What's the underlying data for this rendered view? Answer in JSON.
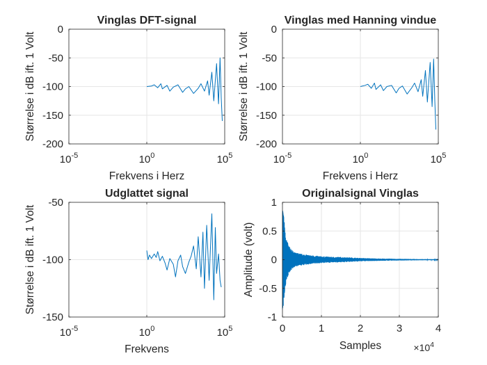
{
  "chart_data": [
    {
      "type": "line",
      "title": "Vinglas DFT-signal",
      "xlabel": "Frekvens i Herz",
      "ylabel": "Størrelse i dB ift. 1 Volt",
      "xscale": "log",
      "xlim": [
        1e-05,
        100000
      ],
      "ylim": [
        -200,
        0
      ],
      "grid": true,
      "xticks": [
        {
          "base": "10",
          "exp": "-5"
        },
        {
          "base": "10",
          "exp": "0"
        },
        {
          "base": "10",
          "exp": "5"
        }
      ],
      "yticks": [
        "0",
        "-50",
        "-100",
        "-150",
        "-200"
      ],
      "line_color": "#0072BD",
      "series": [
        {
          "x": [
            1,
            2,
            3,
            5,
            8,
            10,
            20,
            30,
            50,
            100,
            200,
            300,
            500,
            1000,
            2000,
            3000,
            5000,
            8000,
            10000,
            15000,
            20000,
            30000,
            40000,
            50000,
            60000,
            70000
          ],
          "y": [
            -100,
            -99,
            -97,
            -102,
            -95,
            -104,
            -98,
            -108,
            -101,
            -97,
            -110,
            -104,
            -100,
            -112,
            -103,
            -95,
            -108,
            -90,
            -115,
            -75,
            -125,
            -60,
            -130,
            -50,
            -120,
            -160
          ]
        }
      ]
    },
    {
      "type": "line",
      "title": "Vinglas med Hanning vindue",
      "xlabel": "Frekvens i Herz",
      "ylabel": "Størrelse i dB ift. 1 Volt",
      "xscale": "log",
      "xlim": [
        1e-05,
        100000
      ],
      "ylim": [
        -200,
        0
      ],
      "grid": true,
      "xticks": [
        {
          "base": "10",
          "exp": "-5"
        },
        {
          "base": "10",
          "exp": "0"
        },
        {
          "base": "10",
          "exp": "5"
        }
      ],
      "yticks": [
        "0",
        "-50",
        "-100",
        "-150",
        "-200"
      ],
      "line_color": "#0072BD",
      "series": [
        {
          "x": [
            1,
            2,
            3,
            5,
            8,
            10,
            20,
            30,
            50,
            100,
            200,
            300,
            500,
            1000,
            2000,
            3000,
            5000,
            8000,
            10000,
            15000,
            20000,
            30000,
            40000,
            50000,
            60000,
            70000
          ],
          "y": [
            -100,
            -98,
            -96,
            -103,
            -94,
            -105,
            -97,
            -107,
            -100,
            -98,
            -111,
            -103,
            -99,
            -113,
            -102,
            -94,
            -109,
            -88,
            -117,
            -72,
            -127,
            -58,
            -135,
            -52,
            -125,
            -175
          ]
        }
      ]
    },
    {
      "type": "line",
      "title": "Udglattet signal",
      "xlabel": "Frekvens",
      "ylabel": "Størrelse i dB ift. 1 Volt",
      "xscale": "log",
      "xlim": [
        1e-05,
        100000
      ],
      "ylim": [
        -150,
        -50
      ],
      "grid": true,
      "xticks": [
        {
          "base": "10",
          "exp": "-5"
        },
        {
          "base": "10",
          "exp": "0"
        },
        {
          "base": "10",
          "exp": "5"
        }
      ],
      "yticks": [
        "-50",
        "-100",
        "-150"
      ],
      "line_color": "#0072BD",
      "series": [
        {
          "x": [
            1,
            1.2,
            1.5,
            2,
            3,
            4,
            5,
            7,
            10,
            15,
            20,
            30,
            50,
            70,
            100,
            150,
            200,
            300,
            500,
            700,
            1000,
            1500,
            2000,
            3000,
            4000,
            5000,
            7000,
            10000,
            15000,
            20000,
            25000,
            30000,
            40000,
            50000,
            60000
          ],
          "y": [
            -92,
            -100,
            -96,
            -99,
            -95,
            -98,
            -93,
            -101,
            -97,
            -103,
            -109,
            -99,
            -104,
            -115,
            -101,
            -96,
            -106,
            -112,
            -102,
            -97,
            -88,
            -108,
            -80,
            -115,
            -76,
            -125,
            -70,
            -118,
            -60,
            -135,
            -72,
            -112,
            -95,
            -118,
            -124
          ]
        }
      ]
    },
    {
      "type": "line",
      "title": "Originalsignal Vinglas",
      "xlabel": "Samples",
      "ylabel": "Amplitude (volt)",
      "xlim": [
        0,
        40000
      ],
      "ylim": [
        -1,
        1
      ],
      "grid": true,
      "xticks": [
        "0",
        "1",
        "2",
        "3",
        "4"
      ],
      "x_multiplier": {
        "base": "×10",
        "exp": "4"
      },
      "yticks": [
        "1",
        "0.5",
        "0",
        "-0.5",
        "-1"
      ],
      "line_color": "#0072BD",
      "envelope": {
        "x": [
          0,
          300,
          600,
          1000,
          2000,
          3000,
          5000,
          7000,
          10000,
          13000,
          16000,
          20000,
          25000,
          30000,
          35000,
          40000
        ],
        "amplitude": [
          0.9,
          0.8,
          0.55,
          0.35,
          0.2,
          0.13,
          0.1,
          0.08,
          0.06,
          0.05,
          0.045,
          0.03,
          0.02,
          0.015,
          0.01,
          0.008
        ]
      }
    }
  ]
}
